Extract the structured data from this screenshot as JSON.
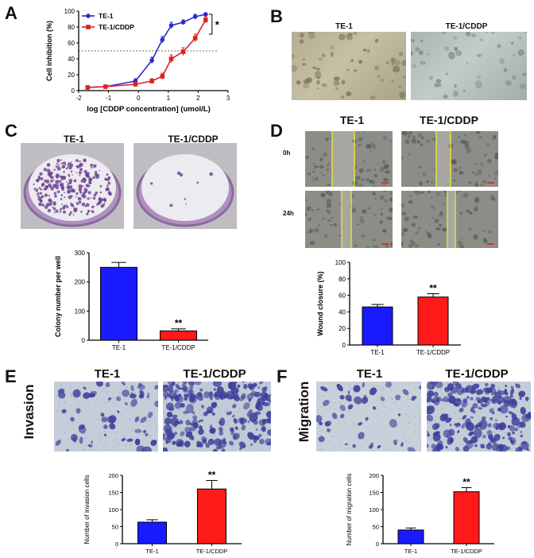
{
  "panels": {
    "A": {
      "letter": "A"
    },
    "B": {
      "letter": "B",
      "titles": [
        "TE-1",
        "TE-1/CDDP"
      ]
    },
    "C": {
      "letter": "C",
      "titles": [
        "TE-1",
        "TE-1/CDDP"
      ]
    },
    "D": {
      "letter": "D",
      "titles": [
        "TE-1",
        "TE-1/CDDP"
      ],
      "rows": [
        "0h",
        "24h"
      ]
    },
    "E": {
      "letter": "E",
      "titles": [
        "TE-1",
        "TE-1/CDDP"
      ],
      "side_label": "Invasion"
    },
    "F": {
      "letter": "F",
      "titles": [
        "TE-1",
        "TE-1/CDDP"
      ],
      "side_label": "Migration"
    }
  },
  "colors": {
    "blue": "#1a1aff",
    "red": "#ff1a1a",
    "te1_line": "#2b2bc8",
    "cddp_line": "#e02020"
  },
  "chart_data": [
    {
      "id": "A",
      "type": "line",
      "xlabel": "log [CDDP concentration] (umol/L)",
      "ylabel": "Cell inhibition (%)",
      "xlim": [
        -2,
        3
      ],
      "ylim": [
        0,
        100
      ],
      "xticks": [
        "-2",
        "-1",
        "0",
        "1",
        "2",
        "3"
      ],
      "yticks": [
        "0",
        "20",
        "40",
        "60",
        "80",
        "100"
      ],
      "reference_line": 50,
      "significance": "*",
      "legend": "top-left",
      "series": [
        {
          "name": "TE-1",
          "color": "#2b2bc8",
          "x": [
            -1.7,
            -1.1,
            -0.1,
            0.45,
            0.8,
            1.1,
            1.5,
            1.9,
            2.25
          ],
          "y": [
            4,
            5,
            12,
            38,
            64,
            82,
            86,
            93,
            96
          ],
          "err": [
            2,
            2,
            3,
            4,
            4,
            4,
            3,
            3,
            2
          ]
        },
        {
          "name": "TE-1/CDDP",
          "color": "#e02020",
          "x": [
            -1.7,
            -1.1,
            -0.1,
            0.45,
            0.8,
            1.1,
            1.5,
            1.9,
            2.25
          ],
          "y": [
            4,
            5,
            8,
            12,
            18,
            40,
            49,
            66,
            89
          ],
          "err": [
            2,
            2,
            3,
            3,
            4,
            5,
            5,
            5,
            4
          ]
        }
      ]
    },
    {
      "id": "C",
      "type": "bar",
      "categories": [
        "TE-1",
        "TE-1/CDDP"
      ],
      "values": [
        250,
        32
      ],
      "errors": [
        17,
        7
      ],
      "ylabel": "Colony number per well",
      "ylim": [
        0,
        300
      ],
      "yticks": [
        "0",
        "100",
        "200",
        "300"
      ],
      "annotations": [
        "",
        "**"
      ]
    },
    {
      "id": "D",
      "type": "bar",
      "categories": [
        "TE-1",
        "TE-1/CDDP"
      ],
      "values": [
        46,
        58
      ],
      "errors": [
        3,
        4
      ],
      "ylabel": "Wound closure (%)",
      "ylim": [
        0,
        100
      ],
      "yticks": [
        "0",
        "20",
        "40",
        "60",
        "80",
        "100"
      ],
      "annotations": [
        "",
        "**"
      ]
    },
    {
      "id": "E",
      "type": "bar",
      "categories": [
        "TE-1",
        "TE-1/CDDP"
      ],
      "values": [
        63,
        160
      ],
      "errors": [
        7,
        25
      ],
      "ylabel": "Number of invasion  cells",
      "ylim": [
        0,
        200
      ],
      "yticks": [
        "0",
        "50",
        "100",
        "150",
        "200"
      ],
      "annotations": [
        "",
        "**"
      ]
    },
    {
      "id": "F",
      "type": "bar",
      "categories": [
        "TE-1",
        "TE-1/CDDP"
      ],
      "values": [
        40,
        152
      ],
      "errors": [
        6,
        12
      ],
      "ylabel": "Number of migration  cells",
      "ylim": [
        0,
        200
      ],
      "yticks": [
        "0",
        "50",
        "100",
        "150",
        "200"
      ],
      "annotations": [
        "",
        "**"
      ]
    }
  ]
}
